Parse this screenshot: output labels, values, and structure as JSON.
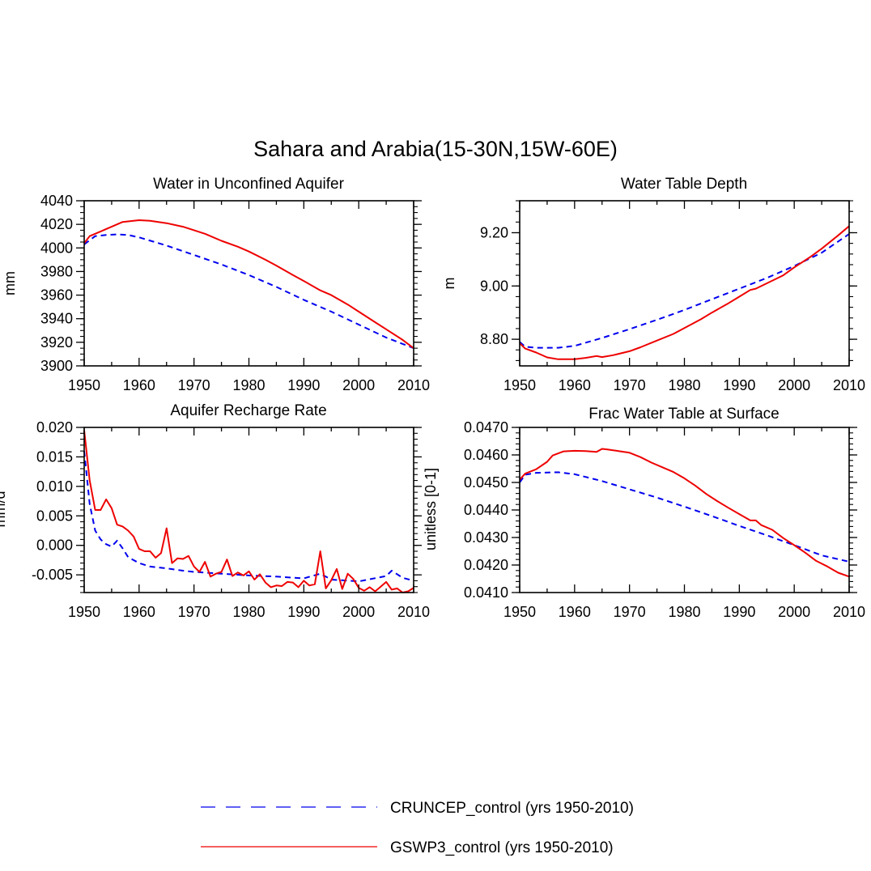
{
  "title": "Sahara and Arabia(15-30N,15W-60E)",
  "colors": {
    "cruncep": "#0000ee",
    "gswp3": "#ee0000"
  },
  "legend": [
    {
      "key": "cruncep",
      "label": "CRUNCEP_control (yrs 1950-2010)",
      "style": "dashed"
    },
    {
      "key": "gswp3",
      "label": "GSWP3_control (yrs 1950-2010)",
      "style": "solid"
    }
  ],
  "chart_data": [
    {
      "type": "line",
      "title": "Water in Unconfined Aquifer",
      "ylabel": "mm",
      "xlabel": "",
      "xlim": [
        1950,
        2010
      ],
      "ylim": [
        3900,
        4040
      ],
      "xticks": [
        "1950",
        "1960",
        "1970",
        "1980",
        "1990",
        "2000",
        "2010"
      ],
      "yticks": [
        "3900",
        "3920",
        "3940",
        "3960",
        "3980",
        "4000",
        "4020",
        "4040"
      ],
      "yminor_step": 5,
      "series": [
        {
          "name": "CRUNCEP_control",
          "x": [
            1950,
            1952,
            1954,
            1956,
            1958,
            1960,
            1965,
            1970,
            1975,
            1980,
            1985,
            1990,
            1995,
            2000,
            2005,
            2010
          ],
          "y": [
            4003,
            4010,
            4011,
            4011.5,
            4011,
            4009,
            4002,
            3994,
            3986,
            3977,
            3967,
            3956,
            3946,
            3935,
            3924,
            3915
          ]
        },
        {
          "name": "GSWP3_control",
          "x": [
            1950,
            1951,
            1953,
            1955,
            1957,
            1960,
            1962,
            1965,
            1968,
            1970,
            1972,
            1975,
            1978,
            1980,
            1983,
            1985,
            1988,
            1990,
            1993,
            1995,
            1998,
            2000,
            2003,
            2005,
            2008,
            2010
          ],
          "y": [
            4004,
            4010,
            4014,
            4018,
            4022,
            4023.5,
            4023,
            4021,
            4018,
            4015,
            4012,
            4006,
            4001,
            3997,
            3990,
            3985,
            3977,
            3972,
            3964,
            3960,
            3952,
            3946,
            3937,
            3931,
            3922,
            3915
          ]
        }
      ]
    },
    {
      "type": "line",
      "title": "Water Table Depth",
      "ylabel": "m",
      "xlabel": "",
      "xlim": [
        1950,
        2010
      ],
      "ylim": [
        8.7,
        9.32
      ],
      "xticks": [
        "1950",
        "1960",
        "1970",
        "1980",
        "1990",
        "2000",
        "2010"
      ],
      "yticks": [
        "8.80",
        "9.00",
        "9.20"
      ],
      "yminor_step": 0.04,
      "series": [
        {
          "name": "CRUNCEP_control",
          "x": [
            1950,
            1951,
            1953,
            1955,
            1957,
            1960,
            1965,
            1970,
            1975,
            1980,
            1985,
            1990,
            1995,
            2000,
            2005,
            2010
          ],
          "y": [
            8.79,
            8.772,
            8.768,
            8.768,
            8.768,
            8.775,
            8.805,
            8.838,
            8.873,
            8.91,
            8.95,
            8.99,
            9.03,
            9.075,
            9.125,
            9.195
          ]
        },
        {
          "name": "GSWP3_control",
          "x": [
            1950,
            1951,
            1953,
            1955,
            1957,
            1960,
            1962,
            1964,
            1965,
            1967,
            1970,
            1972,
            1975,
            1978,
            1980,
            1983,
            1985,
            1988,
            1990,
            1992,
            1993,
            1995,
            1998,
            2000,
            2003,
            2005,
            2008,
            2010
          ],
          "y": [
            8.785,
            8.765,
            8.75,
            8.732,
            8.725,
            8.725,
            8.73,
            8.737,
            8.733,
            8.74,
            8.755,
            8.77,
            8.795,
            8.82,
            8.842,
            8.875,
            8.9,
            8.935,
            8.96,
            8.985,
            8.99,
            9.01,
            9.04,
            9.07,
            9.11,
            9.14,
            9.19,
            9.225
          ]
        }
      ]
    },
    {
      "type": "line",
      "title": "Aquifer Recharge Rate",
      "ylabel": "mm/d",
      "xlabel": "",
      "xlim": [
        1950,
        2010
      ],
      "ylim": [
        -0.008,
        0.02
      ],
      "xticks": [
        "1950",
        "1960",
        "1970",
        "1980",
        "1990",
        "2000",
        "2010"
      ],
      "yticks": [
        "-0.005",
        "0.000",
        "0.005",
        "0.010",
        "0.015",
        "0.020"
      ],
      "yminor_step": 0.001,
      "series": [
        {
          "name": "CRUNCEP_control",
          "x": [
            1950,
            1951,
            1952,
            1953,
            1954,
            1955,
            1956,
            1957,
            1958,
            1960,
            1962,
            1965,
            1968,
            1970,
            1975,
            1980,
            1985,
            1990,
            1993,
            1995,
            2000,
            2005,
            2006,
            2008,
            2010
          ],
          "y": [
            0.016,
            0.007,
            0.0025,
            0.001,
            0.0002,
            -0.0002,
            0.0008,
            -0.0005,
            -0.002,
            -0.003,
            -0.0036,
            -0.0039,
            -0.0043,
            -0.0045,
            -0.0048,
            -0.0051,
            -0.0053,
            -0.0056,
            -0.0048,
            -0.0058,
            -0.0061,
            -0.0052,
            -0.0043,
            -0.0055,
            -0.006
          ]
        },
        {
          "name": "GSWP3_control",
          "x": [
            1950,
            1951,
            1952,
            1953,
            1954,
            1955,
            1956,
            1957,
            1958,
            1959,
            1960,
            1961,
            1962,
            1963,
            1964,
            1965,
            1966,
            1967,
            1968,
            1969,
            1970,
            1971,
            1972,
            1973,
            1974,
            1975,
            1976,
            1977,
            1978,
            1979,
            1980,
            1981,
            1982,
            1983,
            1984,
            1985,
            1986,
            1987,
            1988,
            1989,
            1990,
            1991,
            1992,
            1993,
            1994,
            1995,
            1996,
            1997,
            1998,
            1999,
            2000,
            2001,
            2002,
            2003,
            2004,
            2005,
            2006,
            2007,
            2008,
            2009,
            2010
          ],
          "y": [
            0.0195,
            0.011,
            0.006,
            0.006,
            0.0078,
            0.0063,
            0.0035,
            0.0032,
            0.0025,
            0.0015,
            -0.0006,
            -0.001,
            -0.001,
            -0.0021,
            -0.0013,
            0.0029,
            -0.003,
            -0.0022,
            -0.0023,
            -0.0018,
            -0.0036,
            -0.0045,
            -0.0028,
            -0.0053,
            -0.0048,
            -0.0045,
            -0.0024,
            -0.0052,
            -0.0046,
            -0.0051,
            -0.0044,
            -0.0058,
            -0.0049,
            -0.0063,
            -0.0071,
            -0.0068,
            -0.0069,
            -0.0062,
            -0.0063,
            -0.0071,
            -0.006,
            -0.0068,
            -0.0066,
            -0.001,
            -0.0073,
            -0.0059,
            -0.004,
            -0.0074,
            -0.0048,
            -0.0057,
            -0.0072,
            -0.0077,
            -0.0071,
            -0.0078,
            -0.007,
            -0.0062,
            -0.0075,
            -0.0073,
            -0.008,
            -0.0078,
            -0.0072
          ]
        }
      ]
    },
    {
      "type": "line",
      "title": "Frac Water Table at Surface",
      "ylabel": "unitless [0-1]",
      "xlabel": "",
      "xlim": [
        1950,
        2010
      ],
      "ylim": [
        0.041,
        0.047
      ],
      "xticks": [
        "1950",
        "1960",
        "1970",
        "1980",
        "1990",
        "2000",
        "2010"
      ],
      "yticks": [
        "0.0410",
        "0.0420",
        "0.0430",
        "0.0440",
        "0.0450",
        "0.0460",
        "0.0470"
      ],
      "yminor_step": 0.0002,
      "series": [
        {
          "name": "CRUNCEP_control",
          "x": [
            1950,
            1951,
            1953,
            1955,
            1957,
            1960,
            1965,
            1970,
            1975,
            1980,
            1985,
            1990,
            1995,
            2000,
            2005,
            2010
          ],
          "y": [
            0.045,
            0.04528,
            0.04535,
            0.04536,
            0.04537,
            0.0453,
            0.04505,
            0.04475,
            0.04445,
            0.04412,
            0.04378,
            0.04342,
            0.04308,
            0.04272,
            0.04235,
            0.04212
          ]
        },
        {
          "name": "GSWP3_control",
          "x": [
            1950,
            1951,
            1953,
            1955,
            1956,
            1958,
            1960,
            1962,
            1964,
            1965,
            1966,
            1967,
            1968,
            1970,
            1972,
            1974,
            1976,
            1978,
            1980,
            1982,
            1984,
            1986,
            1988,
            1990,
            1992,
            1993,
            1994,
            1996,
            1998,
            2000,
            2002,
            2004,
            2006,
            2008,
            2010
          ],
          "y": [
            0.0451,
            0.04532,
            0.04548,
            0.04575,
            0.04598,
            0.04613,
            0.04615,
            0.04614,
            0.04611,
            0.04622,
            0.0462,
            0.04617,
            0.04614,
            0.04608,
            0.04592,
            0.04572,
            0.04555,
            0.04538,
            0.04515,
            0.04488,
            0.04458,
            0.04432,
            0.04408,
            0.04385,
            0.04362,
            0.04362,
            0.04345,
            0.04328,
            0.04298,
            0.04272,
            0.04245,
            0.04215,
            0.04195,
            0.04172,
            0.04158
          ]
        }
      ]
    }
  ]
}
